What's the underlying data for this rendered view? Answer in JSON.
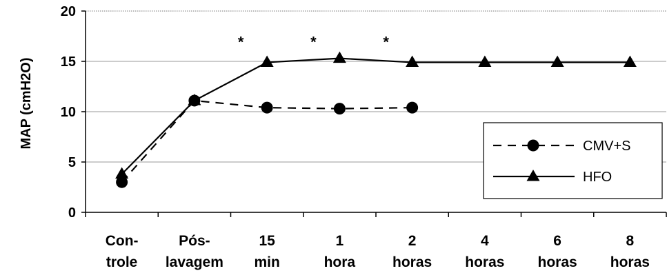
{
  "chart_data": {
    "type": "line",
    "title": "",
    "xlabel": "",
    "ylabel": "MAP (cmH2O)",
    "ylim": [
      0,
      20
    ],
    "yticks": [
      0,
      5,
      10,
      15,
      20
    ],
    "grid": "horizontal",
    "legend_position": "right",
    "categories": [
      [
        "Con-",
        "trole"
      ],
      [
        "Pós-",
        "lavagem"
      ],
      [
        "15",
        "min"
      ],
      [
        "1",
        "hora"
      ],
      [
        "2",
        "horas"
      ],
      [
        "4",
        "horas"
      ],
      [
        "6",
        "horas"
      ],
      [
        "8",
        "horas"
      ]
    ],
    "series": [
      {
        "name": "CMV+S",
        "marker": "circle",
        "line": "dashed",
        "values": [
          3.0,
          11.1,
          10.4,
          10.3,
          10.4,
          null,
          null,
          null
        ]
      },
      {
        "name": "HFO",
        "marker": "triangle",
        "line": "solid",
        "values": [
          3.8,
          11.1,
          14.9,
          15.3,
          14.9,
          14.9,
          14.9,
          14.9
        ]
      }
    ],
    "annotations": [
      {
        "text": "*",
        "category_index": 2,
        "y": 16.8
      },
      {
        "text": "*",
        "category_index": 3,
        "y": 16.8
      },
      {
        "text": "*",
        "category_index": 4,
        "y": 16.8
      }
    ]
  }
}
